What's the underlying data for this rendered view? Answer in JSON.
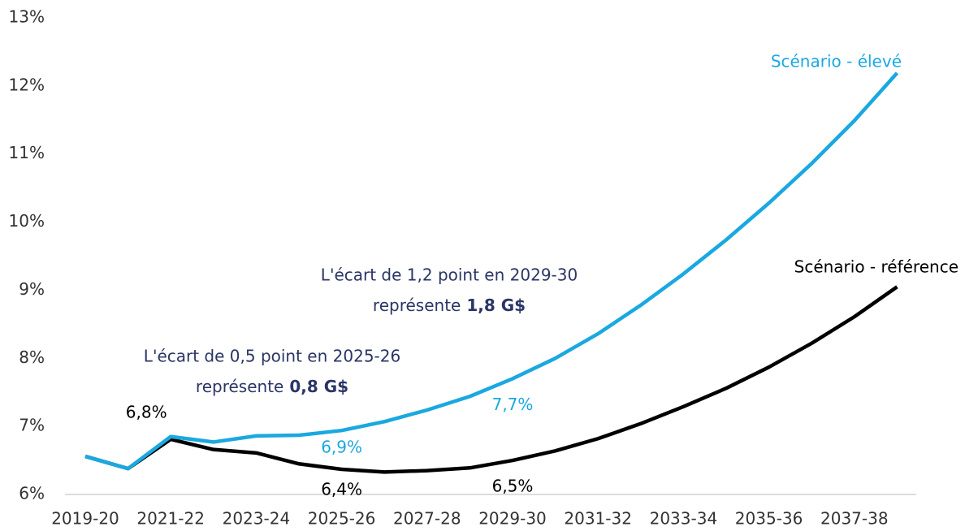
{
  "chart_data": {
    "type": "line",
    "categories": [
      "2019-20",
      null,
      "2021-22",
      null,
      "2023-24",
      null,
      "2025-26",
      null,
      "2027-28",
      null,
      "2029-30",
      null,
      "2031-32",
      null,
      "2033-34",
      null,
      "2035-36",
      null,
      "2037-38",
      null
    ],
    "series": [
      {
        "name": "Scénario - référence",
        "color": "#000000",
        "values": [
          6.56,
          6.38,
          6.81,
          6.66,
          6.61,
          6.45,
          6.37,
          6.33,
          6.35,
          6.39,
          6.5,
          6.64,
          6.82,
          7.04,
          7.29,
          7.56,
          7.87,
          8.22,
          8.61,
          9.05
        ],
        "value_labels": [
          null,
          null,
          "6,8%",
          null,
          null,
          null,
          "6,4%",
          null,
          null,
          null,
          "6,5%",
          null,
          null,
          null,
          null,
          null,
          null,
          null,
          null,
          null
        ]
      },
      {
        "name": "Scénario - élevé",
        "color": "#1aa8e0",
        "values": [
          6.56,
          6.38,
          6.85,
          6.77,
          6.86,
          6.87,
          6.94,
          7.07,
          7.24,
          7.44,
          7.7,
          8.0,
          8.36,
          8.78,
          9.24,
          9.74,
          10.28,
          10.86,
          11.49,
          12.19
        ],
        "value_labels": [
          null,
          null,
          null,
          null,
          null,
          null,
          "6,9%",
          null,
          null,
          null,
          "7,7%",
          null,
          null,
          null,
          null,
          null,
          null,
          null,
          null,
          null
        ]
      }
    ],
    "ylim": [
      6,
      13
    ],
    "yticks": [
      {
        "value": 6,
        "label": "6%"
      },
      {
        "value": 7,
        "label": "7%"
      },
      {
        "value": 8,
        "label": "8%"
      },
      {
        "value": 9,
        "label": "9%"
      },
      {
        "value": 10,
        "label": "10%"
      },
      {
        "value": 11,
        "label": "11%"
      },
      {
        "value": 12,
        "label": "12%"
      },
      {
        "value": 13,
        "label": "13%"
      }
    ],
    "grid": false,
    "annotations": [
      {
        "line1": "L'écart de 0,5 point en 2025-26",
        "line2": "représente",
        "bold": "0,8 G$"
      },
      {
        "line1": "L'écart de 1,2 point en 2029-30",
        "line2": "représente",
        "bold": "1,8 G$"
      }
    ]
  }
}
